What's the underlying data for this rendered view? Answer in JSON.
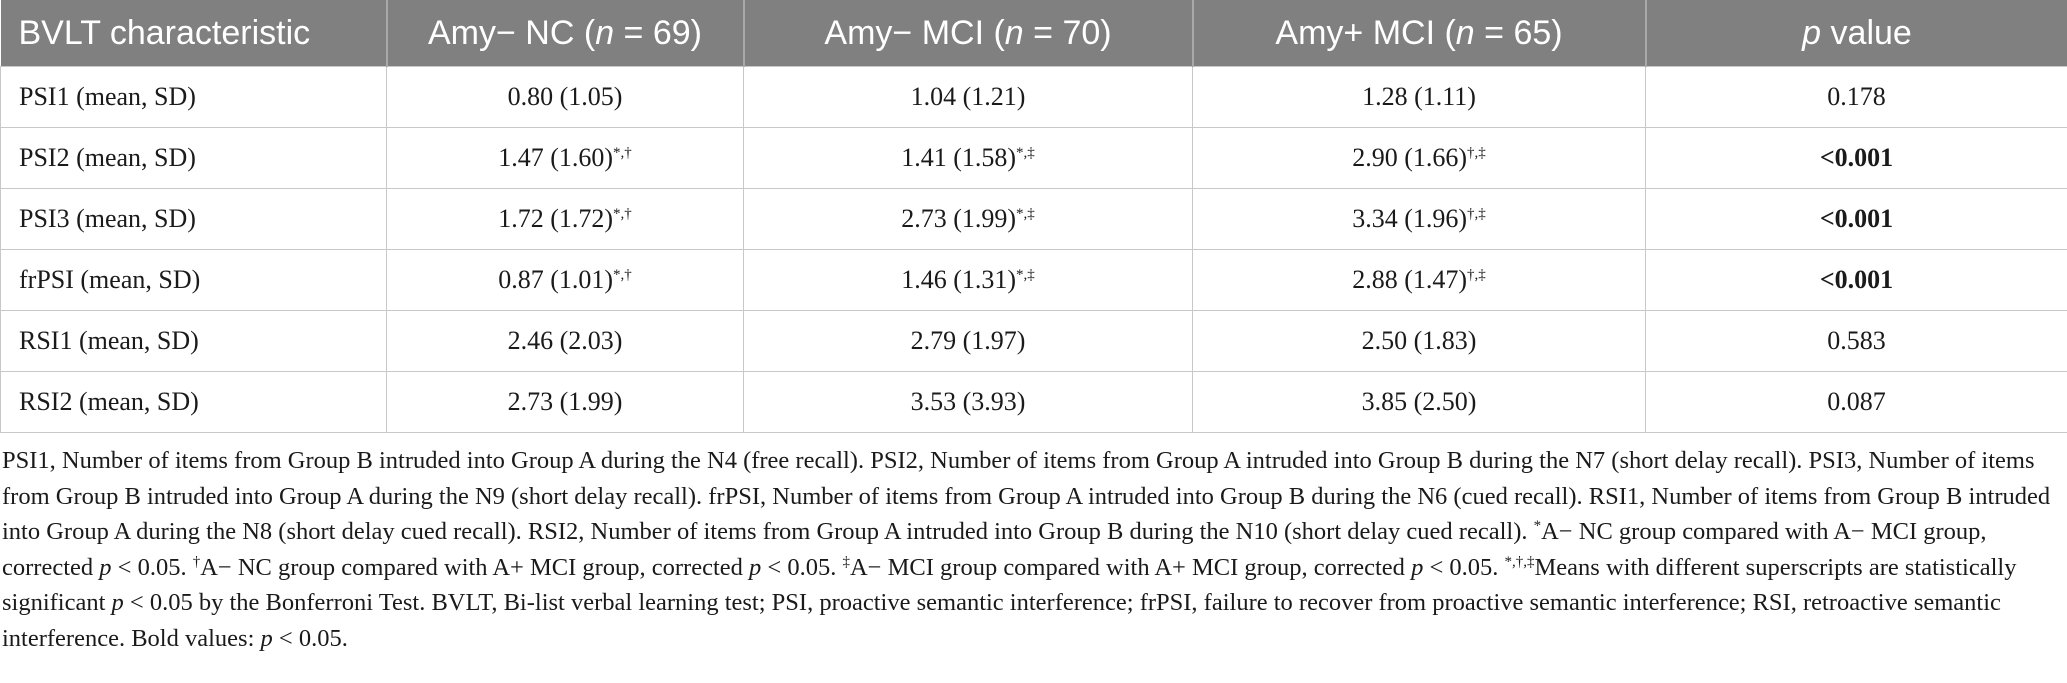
{
  "table": {
    "headers": [
      {
        "pre": "BVLT characteristic",
        "ital": "",
        "post": ""
      },
      {
        "pre": "Amy− NC (",
        "ital": "n",
        "post": " = 69)"
      },
      {
        "pre": "Amy− MCI (",
        "ital": "n",
        "post": " = 70)"
      },
      {
        "pre": "Amy+ MCI (",
        "ital": "n",
        "post": " = 65)"
      },
      {
        "pre": "",
        "ital": "p",
        "post": " value"
      }
    ],
    "rows": [
      {
        "label": "PSI1 (mean, SD)",
        "cells": [
          {
            "value": "0.80 (1.05)",
            "sup": ""
          },
          {
            "value": "1.04 (1.21)",
            "sup": ""
          },
          {
            "value": "1.28 (1.11)",
            "sup": ""
          }
        ],
        "p": "0.178",
        "p_bold": false
      },
      {
        "label": "PSI2 (mean, SD)",
        "cells": [
          {
            "value": "1.47 (1.60)",
            "sup": "*,†"
          },
          {
            "value": "1.41 (1.58)",
            "sup": "*,‡"
          },
          {
            "value": "2.90 (1.66)",
            "sup": "†,‡"
          }
        ],
        "p": "<0.001",
        "p_bold": true
      },
      {
        "label": "PSI3 (mean, SD)",
        "cells": [
          {
            "value": "1.72 (1.72)",
            "sup": "*,†"
          },
          {
            "value": "2.73 (1.99)",
            "sup": "*,‡"
          },
          {
            "value": "3.34 (1.96)",
            "sup": "†,‡"
          }
        ],
        "p": "<0.001",
        "p_bold": true
      },
      {
        "label": "frPSI (mean, SD)",
        "cells": [
          {
            "value": "0.87 (1.01)",
            "sup": "*,†"
          },
          {
            "value": "1.46 (1.31)",
            "sup": "*,‡"
          },
          {
            "value": "2.88 (1.47)",
            "sup": "†,‡"
          }
        ],
        "p": "<0.001",
        "p_bold": true
      },
      {
        "label": "RSI1 (mean, SD)",
        "cells": [
          {
            "value": "2.46 (2.03)",
            "sup": ""
          },
          {
            "value": "2.79 (1.97)",
            "sup": ""
          },
          {
            "value": "2.50 (1.83)",
            "sup": ""
          }
        ],
        "p": "0.583",
        "p_bold": false
      },
      {
        "label": "RSI2 (mean, SD)",
        "cells": [
          {
            "value": "2.73 (1.99)",
            "sup": ""
          },
          {
            "value": "3.53 (3.93)",
            "sup": ""
          },
          {
            "value": "3.85 (2.50)",
            "sup": ""
          }
        ],
        "p": "0.087",
        "p_bold": false
      }
    ]
  },
  "footnote": {
    "t1": "PSI1, Number of items from Group B intruded into Group A during the N4 (free recall). PSI2, Number of items from Group A intruded into Group B during the N7 (short delay recall). PSI3, Number of items from Group B intruded into Group A during the N9 (short delay recall). frPSI, Number of items from Group A intruded into Group B during the N6 (cued recall). RSI1, Number of items from Group B intruded into Group A during the N8 (short delay cued recall). RSI2, Number of items from Group A intruded into Group B during the N10 (short delay cued recall). ",
    "s1": "*",
    "t2": "A− NC group compared with A− MCI group, corrected ",
    "i1": "p",
    "t3": " < 0.05. ",
    "s2": "†",
    "t4": "A− NC group compared with A+ MCI group, corrected ",
    "i2": "p",
    "t5": " < 0.05. ",
    "s3": "‡",
    "t6": "A− MCI group compared with A+ MCI group, corrected ",
    "i3": "p",
    "t7": " < 0.05. ",
    "s4": "*,†,‡",
    "t8": "Means with different superscripts are statistically significant ",
    "i4": "p",
    "t9": " < 0.05 by the Bonferroni Test. BVLT, Bi-list verbal learning test; PSI, proactive semantic interference; frPSI, failure to recover from proactive semantic interference; RSI, retroactive semantic interference. Bold values: ",
    "i5": "p",
    "t10": " < 0.05."
  }
}
